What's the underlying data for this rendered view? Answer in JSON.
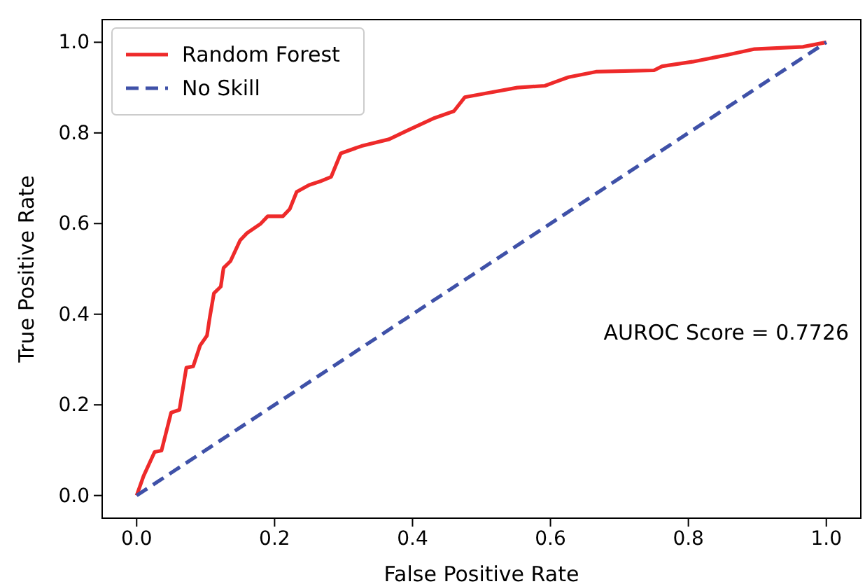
{
  "chart_data": {
    "type": "line",
    "xlabel": "False Positive Rate",
    "ylabel": "True Positive Rate",
    "xlim": [
      -0.05,
      1.05
    ],
    "ylim": [
      -0.05,
      1.05
    ],
    "xticks": [
      {
        "value": 0,
        "label": "0.0"
      },
      {
        "value": 0.2,
        "label": "0.2"
      },
      {
        "value": 0.4,
        "label": "0.4"
      },
      {
        "value": 0.6,
        "label": "0.6"
      },
      {
        "value": 0.8,
        "label": "0.8"
      },
      {
        "value": 1,
        "label": "1.0"
      }
    ],
    "yticks": [
      {
        "value": 0,
        "label": "0.0"
      },
      {
        "value": 0.2,
        "label": "0.2"
      },
      {
        "value": 0.4,
        "label": "0.4"
      },
      {
        "value": 0.6,
        "label": "0.6"
      },
      {
        "value": 0.8,
        "label": "0.8"
      },
      {
        "value": 1,
        "label": "1.0"
      }
    ],
    "grid": false,
    "legend": "top left",
    "marker": "none",
    "annotations": [
      "AUROC Score = 0.7726"
    ],
    "series": [
      {
        "name": "Random Forest",
        "color": "#ee2a2a",
        "line_style": "solid",
        "x": [
          0,
          0.01,
          0.026,
          0.036,
          0.05,
          0.062,
          0.072,
          0.082,
          0.092,
          0.102,
          0.106,
          0.112,
          0.122,
          0.126,
          0.136,
          0.15,
          0.16,
          0.18,
          0.19,
          0.212,
          0.222,
          0.232,
          0.25,
          0.266,
          0.282,
          0.296,
          0.326,
          0.366,
          0.392,
          0.432,
          0.46,
          0.476,
          0.512,
          0.552,
          0.592,
          0.606,
          0.626,
          0.666,
          0.75,
          0.762,
          0.806,
          0.856,
          0.896,
          0.966,
          1
        ],
        "values": [
          0,
          0.043,
          0.096,
          0.099,
          0.183,
          0.189,
          0.282,
          0.285,
          0.331,
          0.353,
          0.393,
          0.446,
          0.461,
          0.502,
          0.517,
          0.563,
          0.579,
          0.6,
          0.616,
          0.616,
          0.632,
          0.67,
          0.685,
          0.693,
          0.703,
          0.755,
          0.771,
          0.786,
          0.805,
          0.833,
          0.848,
          0.879,
          0.889,
          0.9,
          0.904,
          0.912,
          0.923,
          0.935,
          0.938,
          0.947,
          0.957,
          0.972,
          0.985,
          0.99,
          1
        ]
      },
      {
        "name": "No Skill",
        "color": "#3f51a8",
        "line_style": "dashed",
        "x": [
          0,
          1
        ],
        "values": [
          0,
          1
        ]
      }
    ]
  }
}
